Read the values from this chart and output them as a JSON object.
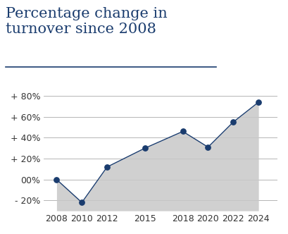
{
  "title_line1": "Percentage change in",
  "title_line2": "turnover since 2008",
  "title_color": "#1a3c6e",
  "x_values": [
    2008,
    2010,
    2012,
    2015,
    2018,
    2020,
    2022,
    2024
  ],
  "y_values": [
    0,
    -22,
    12,
    30,
    46,
    31,
    55,
    74
  ],
  "fill_color": "#c8c8c8",
  "fill_alpha": 0.85,
  "dot_color": "#1a3c6e",
  "dot_size": 28,
  "line_color": "#1a3c6e",
  "line_width": 1.0,
  "yticks": [
    -20,
    0,
    20,
    40,
    60,
    80
  ],
  "ytick_labels": [
    "- 20%",
    "00%",
    "+ 20%",
    "+ 40%",
    "+ 60%",
    "+ 80%"
  ],
  "xtick_labels": [
    "2008",
    "2010",
    "2012",
    "2015",
    "2018",
    "2020",
    "2022",
    "2024"
  ],
  "ylim": [
    -30,
    90
  ],
  "grid_color": "#aaaaaa",
  "background_color": "#ffffff",
  "title_fontsize": 15,
  "tick_fontsize": 9,
  "title_underline": true
}
